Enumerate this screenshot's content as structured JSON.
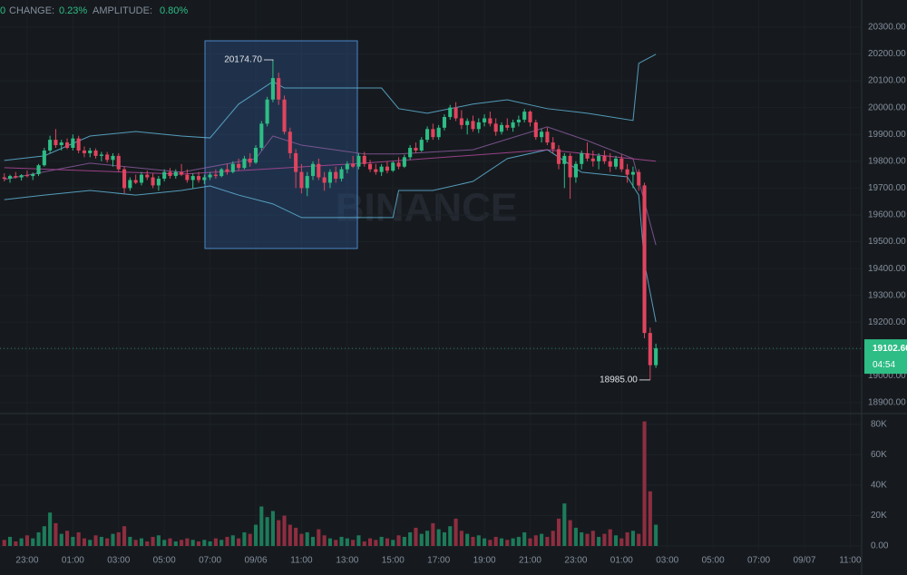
{
  "header": {
    "lead": "0",
    "change_label": "CHANGE:",
    "change": "0.23%",
    "amplitude_label": "AMPLITUDE:",
    "amplitude": "0.80%"
  },
  "watermark": "BINANCE",
  "chart_data": [
    {
      "type": "candlestick",
      "up_color": "#2ebd85",
      "down_color": "#e0445e",
      "xlim": [
        -0.75,
        150
      ],
      "xticks": [
        {
          "value": 4,
          "label": "23:00"
        },
        {
          "value": 12,
          "label": "01:00"
        },
        {
          "value": 20,
          "label": "03:00"
        },
        {
          "value": 28,
          "label": "05:00"
        },
        {
          "value": 36,
          "label": "07:00"
        },
        {
          "value": 44,
          "label": "09/06"
        },
        {
          "value": 52,
          "label": "11:00"
        },
        {
          "value": 60,
          "label": "13:00"
        },
        {
          "value": 68,
          "label": "15:00"
        },
        {
          "value": 76,
          "label": "17:00"
        },
        {
          "value": 84,
          "label": "19:00"
        },
        {
          "value": 92,
          "label": "21:00"
        },
        {
          "value": 100,
          "label": "23:00"
        },
        {
          "value": 108,
          "label": "01:00"
        },
        {
          "value": 116,
          "label": "03:00"
        },
        {
          "value": 124,
          "label": "05:00"
        },
        {
          "value": 132,
          "label": "07:00"
        },
        {
          "value": 140,
          "label": "09/07"
        },
        {
          "value": 148,
          "label": "11:00"
        }
      ],
      "ylim": [
        18863,
        20401
      ],
      "yticks": [
        {
          "value": 18900,
          "label": "18900.00"
        },
        {
          "value": 19000,
          "label": "19000.00"
        },
        {
          "value": 19100,
          "label": "19100.00"
        },
        {
          "value": 19200,
          "label": "19200.00"
        },
        {
          "value": 19300,
          "label": "19300.00"
        },
        {
          "value": 19400,
          "label": "19400.00"
        },
        {
          "value": 19500,
          "label": "19500.00"
        },
        {
          "value": 19600,
          "label": "19600.00"
        },
        {
          "value": 19700,
          "label": "19700.00"
        },
        {
          "value": 19800,
          "label": "19800.00"
        },
        {
          "value": 19900,
          "label": "19900.00"
        },
        {
          "value": 20000,
          "label": "20000.00"
        },
        {
          "value": 20100,
          "label": "20100.00"
        },
        {
          "value": 20200,
          "label": "20200.00"
        },
        {
          "value": 20300,
          "label": "20300.00"
        }
      ],
      "high_label": "20174.70",
      "low_label": "18985.00",
      "price_tag": {
        "value": 19102.6,
        "label": "19102.60"
      },
      "countdown": "04:54",
      "candles": [
        [
          19740,
          19755,
          19725,
          19735
        ],
        [
          19735,
          19750,
          19720,
          19745
        ],
        [
          19745,
          19760,
          19735,
          19740
        ],
        [
          19740,
          19752,
          19728,
          19748
        ],
        [
          19748,
          19765,
          19740,
          19745
        ],
        [
          19745,
          19758,
          19730,
          19752
        ],
        [
          19752,
          19790,
          19745,
          19785
        ],
        [
          19785,
          19850,
          19780,
          19840
        ],
        [
          19840,
          19895,
          19830,
          19880
        ],
        [
          19880,
          19920,
          19850,
          19860
        ],
        [
          19860,
          19880,
          19840,
          19870
        ],
        [
          19870,
          19885,
          19845,
          19850
        ],
        [
          19850,
          19900,
          19840,
          19885
        ],
        [
          19885,
          19895,
          19830,
          19840
        ],
        [
          19840,
          19855,
          19815,
          19830
        ],
        [
          19830,
          19850,
          19815,
          19840
        ],
        [
          19840,
          19848,
          19810,
          19820
        ],
        [
          19820,
          19835,
          19800,
          19825
        ],
        [
          19825,
          19835,
          19795,
          19805
        ],
        [
          19805,
          19830,
          19780,
          19820
        ],
        [
          19820,
          19830,
          19760,
          19770
        ],
        [
          19770,
          19780,
          19680,
          19700
        ],
        [
          19700,
          19740,
          19690,
          19730
        ],
        [
          19730,
          19750,
          19715,
          19720
        ],
        [
          19720,
          19760,
          19710,
          19750
        ],
        [
          19750,
          19765,
          19730,
          19740
        ],
        [
          19740,
          19755,
          19700,
          19710
        ],
        [
          19710,
          19745,
          19690,
          19735
        ],
        [
          19735,
          19770,
          19725,
          19760
        ],
        [
          19760,
          19775,
          19735,
          19745
        ],
        [
          19745,
          19770,
          19735,
          19760
        ],
        [
          19760,
          19790,
          19745,
          19750
        ],
        [
          19750,
          19770,
          19720,
          19730
        ],
        [
          19730,
          19755,
          19700,
          19745
        ],
        [
          19745,
          19760,
          19720,
          19730
        ],
        [
          19730,
          19750,
          19715,
          19740
        ],
        [
          19740,
          19760,
          19730,
          19750
        ],
        [
          19750,
          19770,
          19735,
          19745
        ],
        [
          19745,
          19775,
          19740,
          19770
        ],
        [
          19770,
          19790,
          19750,
          19760
        ],
        [
          19760,
          19800,
          19755,
          19790
        ],
        [
          19790,
          19810,
          19765,
          19775
        ],
        [
          19775,
          19820,
          19770,
          19810
        ],
        [
          19810,
          19830,
          19780,
          19795
        ],
        [
          19795,
          19860,
          19790,
          19850
        ],
        [
          19850,
          19950,
          19840,
          19940
        ],
        [
          19940,
          20040,
          19930,
          20030
        ],
        [
          20030,
          20174.7,
          20020,
          20110
        ],
        [
          20110,
          20130,
          20010,
          20030
        ],
        [
          20030,
          20045,
          19900,
          19910
        ],
        [
          19910,
          19925,
          19810,
          19830
        ],
        [
          19830,
          19845,
          19700,
          19760
        ],
        [
          19760,
          19790,
          19680,
          19700
        ],
        [
          19700,
          19760,
          19670,
          19745
        ],
        [
          19745,
          19800,
          19730,
          19790
        ],
        [
          19790,
          19810,
          19730,
          19740
        ],
        [
          19740,
          19760,
          19690,
          19720
        ],
        [
          19720,
          19770,
          19700,
          19760
        ],
        [
          19760,
          19780,
          19720,
          19735
        ],
        [
          19735,
          19780,
          19725,
          19770
        ],
        [
          19770,
          19800,
          19755,
          19790
        ],
        [
          19790,
          19820,
          19775,
          19780
        ],
        [
          19780,
          19830,
          19770,
          19820
        ],
        [
          19820,
          19835,
          19780,
          19790
        ],
        [
          19790,
          19805,
          19760,
          19770
        ],
        [
          19770,
          19790,
          19750,
          19760
        ],
        [
          19760,
          19790,
          19745,
          19780
        ],
        [
          19780,
          19800,
          19755,
          19765
        ],
        [
          19765,
          19800,
          19760,
          19795
        ],
        [
          19795,
          19815,
          19770,
          19780
        ],
        [
          19780,
          19825,
          19775,
          19815
        ],
        [
          19815,
          19860,
          19805,
          19850
        ],
        [
          19850,
          19870,
          19830,
          19840
        ],
        [
          19840,
          19890,
          19835,
          19880
        ],
        [
          19880,
          19930,
          19870,
          19920
        ],
        [
          19920,
          19940,
          19880,
          19890
        ],
        [
          19890,
          19935,
          19880,
          19925
        ],
        [
          19925,
          19975,
          19915,
          19965
        ],
        [
          19965,
          20010,
          19955,
          20000
        ],
        [
          20000,
          20020,
          19950,
          19960
        ],
        [
          19960,
          19990,
          19920,
          19935
        ],
        [
          19935,
          19960,
          19900,
          19950
        ],
        [
          19950,
          19970,
          19910,
          19920
        ],
        [
          19920,
          19960,
          19905,
          19945
        ],
        [
          19945,
          19975,
          19930,
          19960
        ],
        [
          19960,
          19985,
          19930,
          19940
        ],
        [
          19940,
          19960,
          19895,
          19910
        ],
        [
          19910,
          19945,
          19900,
          19935
        ],
        [
          19935,
          19960,
          19915,
          19925
        ],
        [
          19925,
          19955,
          19910,
          19945
        ],
        [
          19945,
          19970,
          19930,
          19955
        ],
        [
          19955,
          19995,
          19945,
          19985
        ],
        [
          19985,
          19990,
          19930,
          19945
        ],
        [
          19945,
          19955,
          19880,
          19890
        ],
        [
          19890,
          19920,
          19870,
          19910
        ],
        [
          19910,
          19925,
          19860,
          19870
        ],
        [
          19870,
          19890,
          19830,
          19845
        ],
        [
          19845,
          19860,
          19770,
          19790
        ],
        [
          19790,
          19830,
          19700,
          19820
        ],
        [
          19820,
          19830,
          19660,
          19740
        ],
        [
          19740,
          19800,
          19720,
          19790
        ],
        [
          19790,
          19840,
          19770,
          19830
        ],
        [
          19830,
          19870,
          19800,
          19810
        ],
        [
          19810,
          19840,
          19780,
          19800
        ],
        [
          19800,
          19830,
          19770,
          19820
        ],
        [
          19820,
          19840,
          19790,
          19800
        ],
        [
          19800,
          19830,
          19760,
          19780
        ],
        [
          19780,
          19820,
          19770,
          19810
        ],
        [
          19810,
          19825,
          19760,
          19770
        ],
        [
          19770,
          19790,
          19720,
          19750
        ],
        [
          19750,
          19780,
          19700,
          19760
        ],
        [
          19760,
          19770,
          19690,
          19710
        ],
        [
          19710,
          19720,
          19140,
          19160
        ],
        [
          19160,
          19180,
          18985,
          19040
        ],
        [
          19040,
          19120,
          19030,
          19102.6
        ]
      ],
      "overlays": [
        {
          "color": "#5fb3d6",
          "x": [
            0,
            7,
            15,
            23,
            31,
            36,
            41,
            47,
            49,
            55,
            66,
            69,
            74,
            82,
            88,
            95,
            102,
            110,
            111,
            114
          ],
          "values": [
            19803,
            19820,
            19894,
            19911,
            19894,
            19887,
            20013,
            20097,
            20073,
            20073,
            20073,
            19996,
            19979,
            20013,
            20029,
            19996,
            19979,
            19952,
            20165,
            20199
          ]
        },
        {
          "color": "#5fb3d6",
          "x": [
            0,
            7,
            15,
            23,
            31,
            36,
            41,
            47,
            52,
            58,
            68,
            69,
            75,
            82,
            88,
            95,
            101,
            109,
            111,
            112,
            114
          ],
          "values": [
            19657,
            19674,
            19691,
            19674,
            19691,
            19708,
            19674,
            19641,
            19590,
            19590,
            19590,
            19691,
            19691,
            19725,
            19810,
            19843,
            19759,
            19742,
            19674,
            19421,
            19201
          ]
        },
        {
          "color": "#8a5a9e",
          "x": [
            0,
            15,
            31,
            44,
            47,
            52,
            63,
            69,
            82,
            95,
            102,
            110,
            114
          ],
          "values": [
            19732,
            19793,
            19759,
            19810,
            19894,
            19860,
            19827,
            19827,
            19843,
            19928,
            19877,
            19810,
            19488
          ]
        },
        {
          "color": "#b0489a",
          "x": [
            0,
            31,
            63,
            95,
            114
          ],
          "values": [
            19776,
            19752,
            19793,
            19843,
            19800
          ]
        }
      ]
    },
    {
      "type": "bar",
      "ylim": [
        0,
        86000
      ],
      "yticks": [
        {
          "value": 0,
          "label": "0.00"
        },
        {
          "value": 20000,
          "label": "20K"
        },
        {
          "value": 40000,
          "label": "40K"
        },
        {
          "value": 60000,
          "label": "60K"
        },
        {
          "value": 80000,
          "label": "80K"
        }
      ],
      "up_color": "#1d7b5a",
      "down_color": "#8e2e40",
      "values": [
        4000,
        6000,
        3000,
        5000,
        7000,
        5000,
        9000,
        13000,
        22000,
        15000,
        8000,
        10000,
        6000,
        9000,
        5000,
        4000,
        7000,
        6000,
        5000,
        8000,
        9000,
        13000,
        6000,
        4000,
        5000,
        3000,
        6000,
        7000,
        4000,
        5000,
        3000,
        4000,
        5000,
        4000,
        3000,
        4000,
        3000,
        5000,
        4000,
        6000,
        7000,
        5000,
        9000,
        8000,
        14000,
        26000,
        19000,
        23000,
        17000,
        20000,
        14000,
        12000,
        8000,
        9000,
        6000,
        11000,
        7000,
        5000,
        4000,
        6000,
        5000,
        4000,
        7000,
        3000,
        5000,
        4000,
        6000,
        5000,
        4000,
        7000,
        6000,
        9000,
        12000,
        8000,
        10000,
        15000,
        11000,
        9000,
        13000,
        18000,
        10000,
        8000,
        6000,
        7000,
        5000,
        4000,
        6000,
        5000,
        4000,
        5000,
        6000,
        9000,
        5000,
        7000,
        8000,
        6000,
        10000,
        18000,
        28000,
        17000,
        12000,
        9000,
        8000,
        10000,
        6000,
        8000,
        11000,
        7000,
        5000,
        9000,
        10000,
        8000,
        82000,
        36000,
        14000
      ]
    }
  ]
}
